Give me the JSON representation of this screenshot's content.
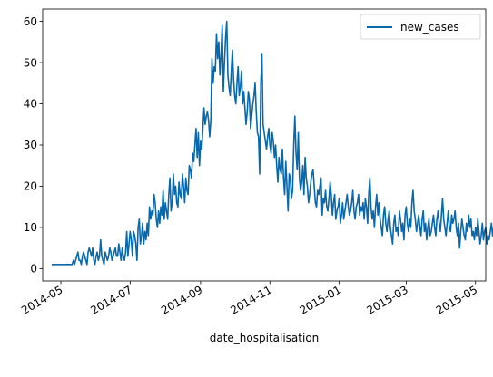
{
  "chart_data": {
    "type": "line",
    "xlabel": "date_hospitalisation",
    "ylabel": "",
    "x_range": [
      "2014-04-15",
      "2015-05-10"
    ],
    "ylim": [
      -3,
      63
    ],
    "yticks": [
      0,
      10,
      20,
      30,
      40,
      50,
      60
    ],
    "xticks": [
      {
        "date": "2014-05-01",
        "label": "2014-05"
      },
      {
        "date": "2014-07-01",
        "label": "2014-07"
      },
      {
        "date": "2014-09-01",
        "label": "2014-09"
      },
      {
        "date": "2014-11-01",
        "label": "2014-11"
      },
      {
        "date": "2015-01-01",
        "label": "2015-01"
      },
      {
        "date": "2015-03-01",
        "label": "2015-03"
      },
      {
        "date": "2015-05-01",
        "label": "2015-05"
      }
    ],
    "legend": {
      "position": "top-right"
    },
    "grid": false,
    "series": [
      {
        "name": "new_cases",
        "color": "#0868ac",
        "x_start": "2014-04-23",
        "values": [
          1,
          1,
          1,
          1,
          1,
          1,
          1,
          1,
          1,
          1,
          1,
          1,
          1,
          1,
          1,
          1,
          1,
          1,
          1,
          2,
          1,
          2,
          3,
          4,
          2,
          2,
          1,
          3,
          4,
          3,
          2,
          1,
          4,
          5,
          4,
          3,
          5,
          2,
          1,
          3,
          4,
          2,
          3,
          7,
          3,
          2,
          1,
          4,
          3,
          2,
          3,
          5,
          4,
          2,
          3,
          4,
          5,
          3,
          3,
          6,
          4,
          2,
          5,
          3,
          2,
          4,
          9,
          3,
          6,
          9,
          7,
          3,
          9,
          8,
          6,
          2,
          10,
          12,
          6,
          8,
          11,
          6,
          9,
          7,
          11,
          8,
          15,
          12,
          14,
          13,
          18,
          16,
          12,
          10,
          14,
          11,
          15,
          13,
          19,
          12,
          16,
          14,
          12,
          18,
          22,
          14,
          16,
          23,
          18,
          20,
          16,
          15,
          21,
          18,
          17,
          23,
          20,
          16,
          22,
          19,
          18,
          25,
          24,
          22,
          28,
          26,
          30,
          34,
          27,
          33,
          25,
          31,
          29,
          34,
          39,
          35,
          37,
          38,
          36,
          32,
          36,
          51,
          45,
          49,
          48,
          57,
          51,
          55,
          47,
          52,
          59,
          43,
          50,
          56,
          60,
          47,
          44,
          42,
          48,
          53,
          46,
          42,
          40,
          45,
          49,
          42,
          44,
          48,
          40,
          43,
          39,
          35,
          38,
          43,
          41,
          34,
          37,
          40,
          42,
          45,
          38,
          33,
          32,
          23,
          45,
          52,
          35,
          33,
          31,
          29,
          32,
          34,
          30,
          28,
          33,
          31,
          27,
          30,
          25,
          21,
          27,
          24,
          23,
          29,
          22,
          18,
          26,
          20,
          14,
          23,
          22,
          17,
          19,
          30,
          37,
          28,
          24,
          33,
          22,
          19,
          21,
          25,
          18,
          27,
          22,
          20,
          16,
          18,
          21,
          23,
          24,
          20,
          16,
          15,
          19,
          18,
          20,
          22,
          13,
          17,
          16,
          19,
          15,
          14,
          17,
          21,
          18,
          13,
          16,
          18,
          12,
          14,
          15,
          17,
          11,
          13,
          16,
          12,
          14,
          16,
          18,
          15,
          13,
          14,
          16,
          19,
          14,
          12,
          15,
          16,
          18,
          13,
          15,
          14,
          16,
          12,
          17,
          15,
          11,
          18,
          22,
          15,
          12,
          14,
          10,
          15,
          18,
          13,
          16,
          12,
          10,
          8,
          13,
          15,
          11,
          9,
          12,
          14,
          10,
          8,
          6,
          11,
          13,
          9,
          10,
          8,
          14,
          12,
          9,
          11,
          7,
          13,
          15,
          11,
          9,
          12,
          10,
          16,
          19,
          14,
          12,
          9,
          11,
          13,
          10,
          8,
          12,
          14,
          9,
          11,
          7,
          10,
          12,
          8,
          9,
          11,
          13,
          10,
          8,
          12,
          14,
          11,
          9,
          13,
          17,
          12,
          10,
          8,
          11,
          14,
          10,
          9,
          13,
          11,
          12,
          14,
          10,
          8,
          11,
          5,
          9,
          12,
          10,
          8,
          7,
          11,
          9,
          13,
          10,
          12,
          8,
          9,
          7,
          10,
          8,
          12,
          9,
          6,
          8,
          11,
          7,
          9,
          10,
          6,
          8,
          7,
          9,
          11,
          8,
          10,
          6,
          12,
          9,
          7,
          10,
          8,
          6,
          9,
          5,
          8,
          7,
          4,
          9,
          10,
          6,
          8,
          5,
          7,
          9,
          6,
          8,
          5,
          7,
          4,
          6,
          8,
          7,
          5,
          3,
          8,
          7,
          6,
          5,
          8,
          3,
          4,
          9,
          7,
          8,
          2,
          6,
          8,
          9,
          7,
          8,
          5,
          4
        ]
      }
    ]
  }
}
